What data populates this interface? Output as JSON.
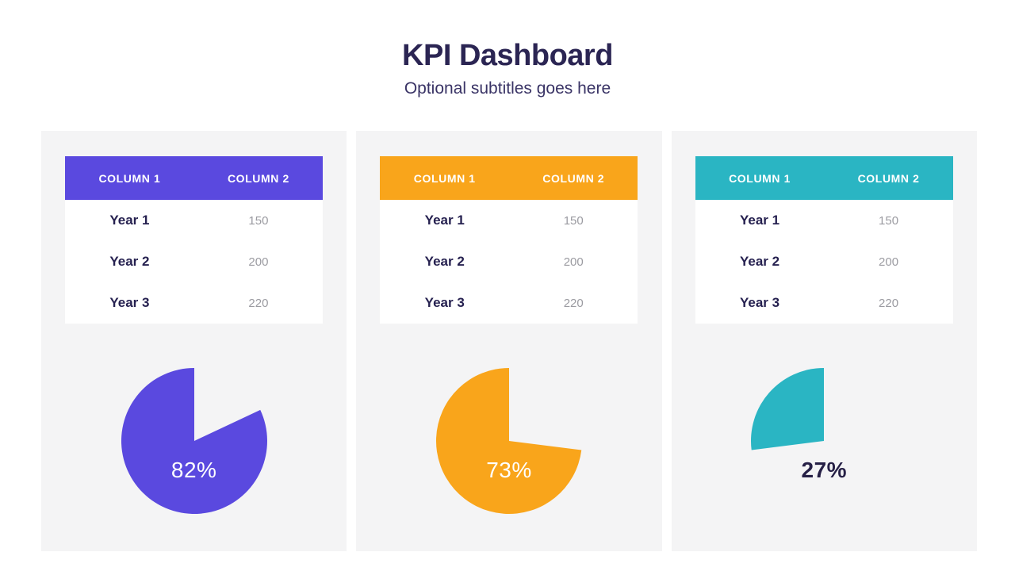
{
  "header": {
    "title": "KPI Dashboard",
    "subtitle": "Optional subtitles goes here"
  },
  "colors": {
    "page_bg": "#FFFFFF",
    "panel_bg": "#F4F4F5",
    "title_navy": "#2B2553",
    "row_label_navy": "#262150",
    "value_gray": "#9B9BA1",
    "purple": "#5A49DF",
    "orange": "#F9A51B",
    "teal": "#2AB5C3"
  },
  "panels": [
    {
      "name": "purple-kpi",
      "accent": "#5A49DF",
      "table": {
        "col1": "COLUMN 1",
        "col2": "COLUMN 2",
        "rows": [
          {
            "label": "Year 1",
            "value": "150"
          },
          {
            "label": "Year 2",
            "value": "200"
          },
          {
            "label": "Year 3",
            "value": "220"
          }
        ]
      },
      "pie": {
        "percent": 82,
        "label": "82%",
        "label_color": "#FFFFFF"
      }
    },
    {
      "name": "orange-kpi",
      "accent": "#F9A51B",
      "table": {
        "col1": "COLUMN 1",
        "col2": "COLUMN 2",
        "rows": [
          {
            "label": "Year 1",
            "value": "150"
          },
          {
            "label": "Year 2",
            "value": "200"
          },
          {
            "label": "Year 3",
            "value": "220"
          }
        ]
      },
      "pie": {
        "percent": 73,
        "label": "73%",
        "label_color": "#FFFFFF"
      }
    },
    {
      "name": "teal-kpi",
      "accent": "#2AB5C3",
      "table": {
        "col1": "COLUMN 1",
        "col2": "COLUMN 2",
        "rows": [
          {
            "label": "Year 1",
            "value": "150"
          },
          {
            "label": "Year 2",
            "value": "200"
          },
          {
            "label": "Year 3",
            "value": "220"
          }
        ]
      },
      "pie": {
        "percent": 27,
        "label": "27%",
        "label_color": "#262046"
      }
    }
  ],
  "chart_data": [
    {
      "type": "pie",
      "title": "",
      "values": [
        82,
        18
      ],
      "labels": [
        "82%",
        "remainder"
      ],
      "color": "#5A49DF",
      "start_angle": "top",
      "direction": "clockwise",
      "companion_table": {
        "type": "table",
        "columns": [
          "COLUMN 1",
          "COLUMN 2"
        ],
        "rows": [
          [
            "Year 1",
            150
          ],
          [
            "Year 2",
            200
          ],
          [
            "Year 3",
            220
          ]
        ]
      }
    },
    {
      "type": "pie",
      "title": "",
      "values": [
        73,
        27
      ],
      "labels": [
        "73%",
        "remainder"
      ],
      "color": "#F9A51B",
      "start_angle": "top",
      "direction": "clockwise",
      "companion_table": {
        "type": "table",
        "columns": [
          "COLUMN 1",
          "COLUMN 2"
        ],
        "rows": [
          [
            "Year 1",
            150
          ],
          [
            "Year 2",
            200
          ],
          [
            "Year 3",
            220
          ]
        ]
      }
    },
    {
      "type": "pie",
      "title": "",
      "values": [
        27,
        73
      ],
      "labels": [
        "27%",
        "remainder"
      ],
      "color": "#2AB5C3",
      "start_angle": "top",
      "direction": "clockwise",
      "companion_table": {
        "type": "table",
        "columns": [
          "COLUMN 1",
          "COLUMN 2"
        ],
        "rows": [
          [
            "Year 1",
            150
          ],
          [
            "Year 2",
            200
          ],
          [
            "Year 3",
            220
          ]
        ]
      }
    }
  ]
}
